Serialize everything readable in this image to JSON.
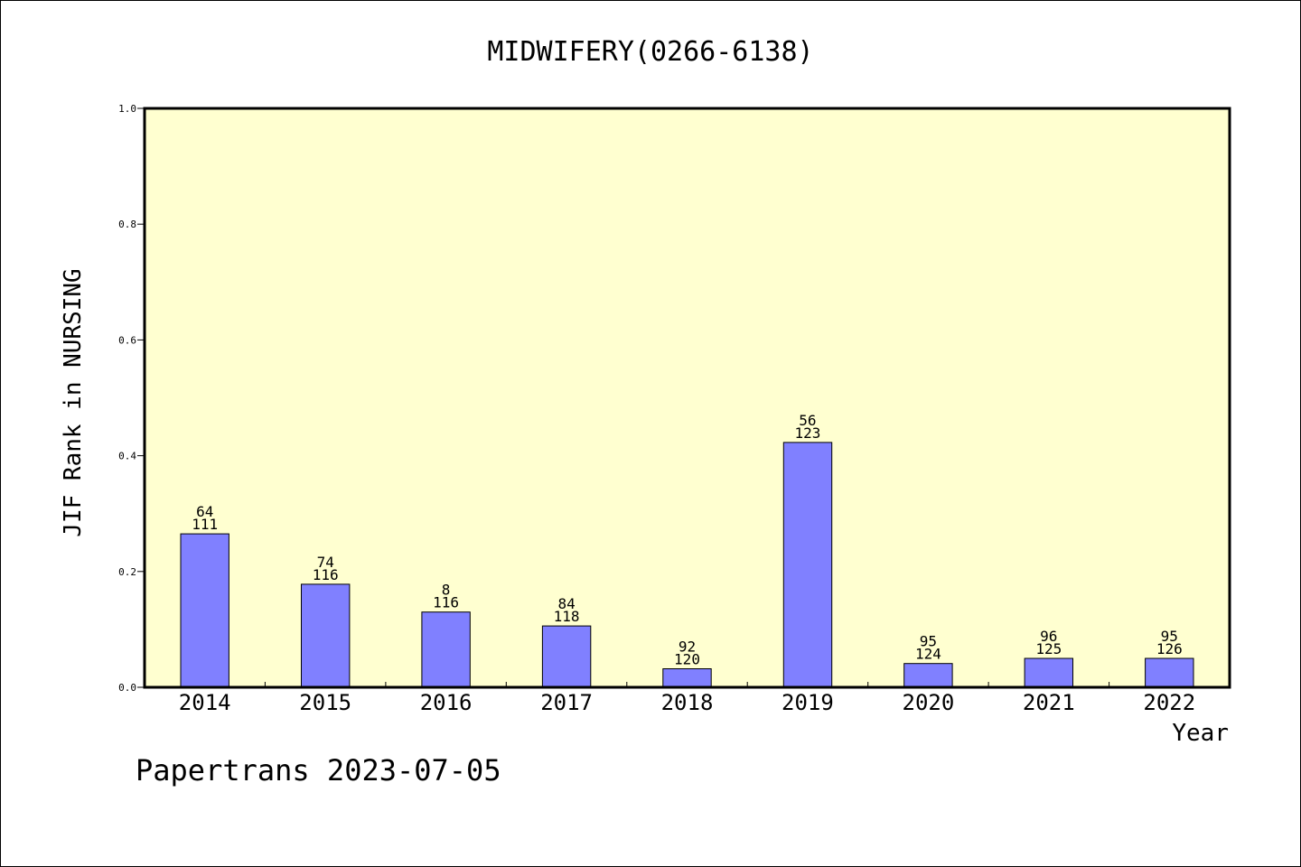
{
  "chart_data": {
    "type": "bar",
    "title": "MIDWIFERY(0266-6138)",
    "xlabel": "Year",
    "ylabel": "JIF Rank in NURSING",
    "categories": [
      "2014",
      "2015",
      "2016",
      "2017",
      "2018",
      "2019",
      "2020",
      "2021",
      "2022"
    ],
    "series": [
      {
        "values": [
          0.265,
          0.178,
          0.13,
          0.106,
          0.032,
          0.423,
          0.041,
          0.05,
          0.05
        ],
        "rank": [
          "64",
          "74",
          "8",
          "84",
          "92",
          "56",
          "95",
          "96",
          "95"
        ],
        "total": [
          "111",
          "116",
          "116",
          "118",
          "120",
          "123",
          "124",
          "125",
          "126"
        ]
      }
    ],
    "ylim": [
      0,
      1.0
    ],
    "yticks": [
      "0.0",
      "0.2",
      "0.4",
      "0.6",
      "0.8",
      "1.0"
    ],
    "grid": false,
    "colors": {
      "plot_background": "#ffffd0",
      "bar_fill": "#8080ff",
      "bar_stroke": "#000000"
    }
  },
  "footer": {
    "watermark": "Papertrans 2023-07-05"
  }
}
